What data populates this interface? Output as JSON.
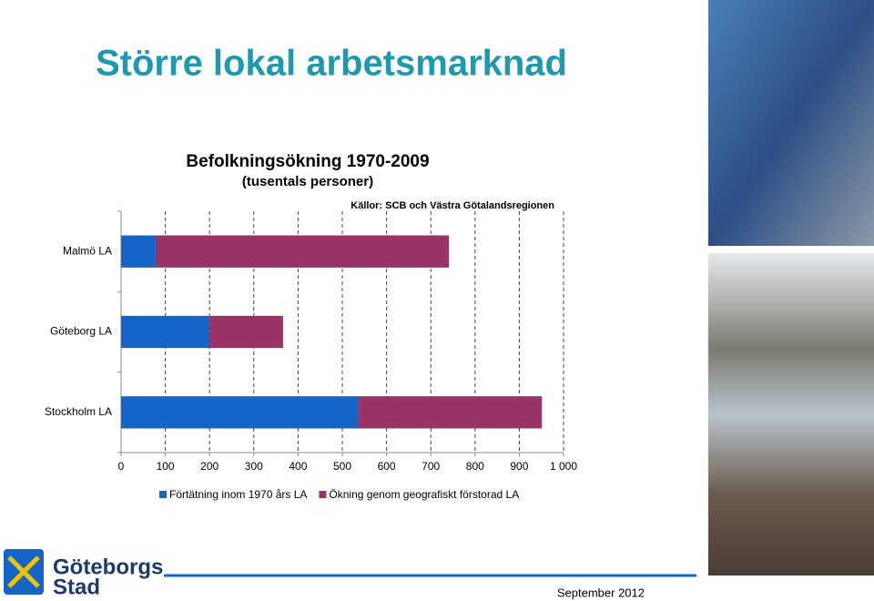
{
  "slide": {
    "title": "Större lokal arbetsmarknad",
    "footer": "September 2012",
    "logo": [
      "Göteborgs",
      "Stad"
    ]
  },
  "chart_data": {
    "type": "bar",
    "orientation": "horizontal",
    "stacked": true,
    "title": "Befolkningsökning 1970-2009",
    "subtitle": "(tusentals personer)",
    "source": "Källor: SCB och Västra Götalandsregionen",
    "categories": [
      "Malmö LA",
      "Göteborg LA",
      "Stockholm LA"
    ],
    "series": [
      {
        "name": "Förtätning inom 1970 års LA",
        "color": "#1565c8",
        "values": [
          78,
          200,
          537
        ]
      },
      {
        "name": "Ökning genom geografiskt förstorad LA",
        "color": "#993366",
        "values": [
          663,
          166,
          414
        ]
      }
    ],
    "xlim": [
      0,
      1000
    ],
    "xticks": [
      0,
      100,
      200,
      300,
      400,
      500,
      600,
      700,
      800,
      900,
      {
        "value": 1000,
        "label": "1 000"
      }
    ],
    "grid": true
  }
}
